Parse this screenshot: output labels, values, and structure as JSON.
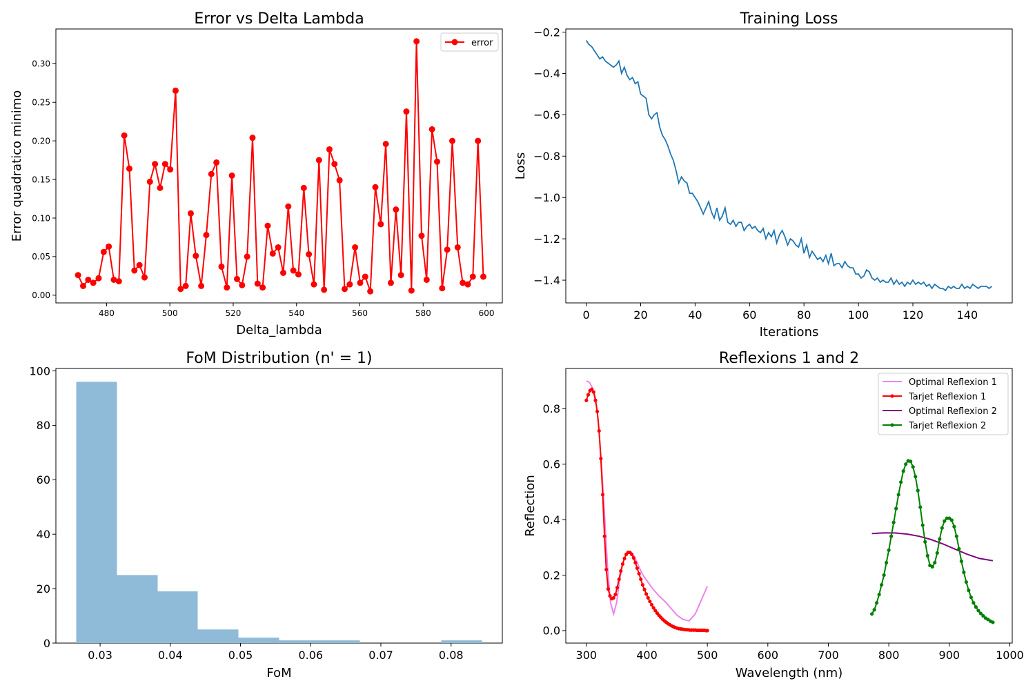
{
  "chart_data": [
    {
      "type": "line",
      "title": "Error vs Delta Lambda",
      "xlabel": "Delta_lambda",
      "ylabel": "Error quadratico minimo",
      "xlim": [
        464,
        605
      ],
      "ylim": [
        -0.01,
        0.345
      ],
      "xticks": [
        480,
        500,
        520,
        540,
        560,
        580,
        600
      ],
      "yticks": [
        0.0,
        0.05,
        0.1,
        0.15,
        0.2,
        0.25,
        0.3
      ],
      "ytick_labels": [
        "0.00",
        "0.05",
        "0.10",
        "0.15",
        "0.20",
        "0.25",
        "0.30"
      ],
      "legend": "upper right",
      "series": [
        {
          "name": "error",
          "color": "#ff0000",
          "marker": "circle",
          "x": [
            471,
            472.6,
            474.2,
            475.8,
            477.5,
            479.1,
            480.7,
            482.3,
            483.9,
            485.6,
            487.2,
            488.8,
            490.4,
            492,
            493.7,
            495.3,
            496.9,
            498.5,
            500.1,
            501.8,
            503.4,
            505,
            506.6,
            508.2,
            509.9,
            511.5,
            513.1,
            514.7,
            516.3,
            518,
            519.6,
            521.2,
            522.8,
            524.4,
            526.1,
            527.7,
            529.3,
            530.9,
            532.5,
            534.2,
            535.8,
            537.4,
            539,
            540.6,
            542.3,
            543.9,
            545.5,
            547.1,
            548.7,
            550.4,
            552,
            553.6,
            555.2,
            556.8,
            558.5,
            560.1,
            561.7,
            563.3,
            564.9,
            566.6,
            568.2,
            569.8,
            571.4,
            573,
            574.7,
            576.3,
            577.9,
            579.5,
            581.1,
            582.8,
            584.4,
            586,
            587.6,
            589.2,
            590.9,
            592.5,
            594.1,
            595.7,
            597.3,
            599
          ],
          "y": [
            0.026,
            0.012,
            0.02,
            0.016,
            0.022,
            0.056,
            0.063,
            0.02,
            0.018,
            0.207,
            0.164,
            0.032,
            0.039,
            0.023,
            0.147,
            0.17,
            0.139,
            0.17,
            0.163,
            0.265,
            0.008,
            0.012,
            0.106,
            0.051,
            0.012,
            0.078,
            0.157,
            0.172,
            0.037,
            0.01,
            0.155,
            0.021,
            0.013,
            0.05,
            0.204,
            0.015,
            0.01,
            0.09,
            0.054,
            0.062,
            0.029,
            0.115,
            0.032,
            0.027,
            0.139,
            0.053,
            0.014,
            0.175,
            0.007,
            0.189,
            0.17,
            0.149,
            0.008,
            0.014,
            0.062,
            0.016,
            0.024,
            0.005,
            0.14,
            0.092,
            0.196,
            0.016,
            0.111,
            0.026,
            0.238,
            0.006,
            0.329,
            0.077,
            0.02,
            0.215,
            0.173,
            0.009,
            0.059,
            0.2,
            0.062,
            0.016,
            0.014,
            0.024,
            0.2,
            0.024
          ]
        }
      ]
    },
    {
      "type": "line",
      "title": "Training Loss",
      "xlabel": "Iterations",
      "ylabel": "Loss",
      "xlim": [
        -7.5,
        156.5
      ],
      "ylim": [
        -1.51,
        -0.185
      ],
      "xticks": [
        0,
        20,
        40,
        60,
        80,
        100,
        120,
        140
      ],
      "yticks": [
        -1.4,
        -1.2,
        -1.0,
        -0.8,
        -0.6,
        -0.4,
        -0.2
      ],
      "ytick_labels": [
        "−1.4",
        "−1.2",
        "−1.0",
        "−0.8",
        "−0.6",
        "−0.4",
        "−0.2"
      ],
      "series": [
        {
          "name": "",
          "color": "#1f77b4",
          "x_start": 0,
          "x_step": 1,
          "y": [
            -0.24,
            -0.26,
            -0.27,
            -0.29,
            -0.31,
            -0.33,
            -0.32,
            -0.34,
            -0.35,
            -0.36,
            -0.37,
            -0.36,
            -0.34,
            -0.4,
            -0.37,
            -0.41,
            -0.43,
            -0.42,
            -0.45,
            -0.44,
            -0.5,
            -0.51,
            -0.52,
            -0.6,
            -0.62,
            -0.6,
            -0.59,
            -0.66,
            -0.7,
            -0.72,
            -0.75,
            -0.79,
            -0.82,
            -0.87,
            -0.93,
            -0.9,
            -0.92,
            -0.93,
            -0.98,
            -0.98,
            -1.0,
            -1.02,
            -1.05,
            -1.08,
            -1.05,
            -1.02,
            -1.07,
            -1.1,
            -1.05,
            -1.11,
            -1.09,
            -1.05,
            -1.12,
            -1.13,
            -1.11,
            -1.14,
            -1.12,
            -1.12,
            -1.16,
            -1.14,
            -1.13,
            -1.15,
            -1.14,
            -1.16,
            -1.17,
            -1.15,
            -1.2,
            -1.17,
            -1.19,
            -1.16,
            -1.22,
            -1.18,
            -1.16,
            -1.19,
            -1.23,
            -1.2,
            -1.21,
            -1.23,
            -1.24,
            -1.2,
            -1.27,
            -1.23,
            -1.29,
            -1.26,
            -1.28,
            -1.3,
            -1.29,
            -1.31,
            -1.28,
            -1.32,
            -1.27,
            -1.33,
            -1.32,
            -1.32,
            -1.34,
            -1.31,
            -1.33,
            -1.34,
            -1.34,
            -1.37,
            -1.37,
            -1.39,
            -1.38,
            -1.35,
            -1.36,
            -1.39,
            -1.4,
            -1.39,
            -1.41,
            -1.4,
            -1.41,
            -1.41,
            -1.39,
            -1.42,
            -1.4,
            -1.42,
            -1.41,
            -1.43,
            -1.41,
            -1.42,
            -1.4,
            -1.42,
            -1.41,
            -1.42,
            -1.41,
            -1.43,
            -1.42,
            -1.44,
            -1.42,
            -1.43,
            -1.44,
            -1.44,
            -1.45,
            -1.43,
            -1.44,
            -1.43,
            -1.44,
            -1.44,
            -1.42,
            -1.44,
            -1.43,
            -1.44,
            -1.42,
            -1.43,
            -1.44,
            -1.43,
            -1.43,
            -1.43,
            -1.44,
            -1.43
          ]
        }
      ]
    },
    {
      "type": "bar",
      "subtype": "histogram",
      "title": "FoM Distribution (n' = 1)",
      "xlabel": "FoM",
      "ylabel": "",
      "color": "#8fbad8",
      "xlim": [
        0.0237,
        0.0873
      ],
      "ylim": [
        0,
        100.9
      ],
      "xticks": [
        0.03,
        0.04,
        0.05,
        0.06,
        0.07,
        0.08
      ],
      "xtick_labels": [
        "0.03",
        "0.04",
        "0.05",
        "0.06",
        "0.07",
        "0.08"
      ],
      "yticks": [
        0,
        20,
        40,
        60,
        80,
        100
      ],
      "bin_edges": [
        0.0266,
        0.0324,
        0.0382,
        0.0439,
        0.0497,
        0.0555,
        0.0613,
        0.067,
        0.0728,
        0.0786,
        0.0844
      ],
      "counts": [
        96,
        25,
        19,
        5,
        2,
        1,
        1,
        0,
        0,
        1
      ]
    },
    {
      "type": "line",
      "title": "Reflexions 1 and 2",
      "xlabel": "Wavelength (nm)",
      "ylabel": "Reflection",
      "xlim": [
        266,
        1004
      ],
      "ylim": [
        -0.045,
        0.945
      ],
      "xticks": [
        300,
        400,
        500,
        600,
        700,
        800,
        900,
        1000
      ],
      "yticks": [
        0.0,
        0.2,
        0.4,
        0.6,
        0.8
      ],
      "ytick_labels": [
        "0.0",
        "0.2",
        "0.4",
        "0.6",
        "0.8"
      ],
      "legend": "upper right",
      "series": [
        {
          "name": "Optimal Reflexion 1",
          "color": "#ee82ee",
          "marker": "none",
          "x": [
            300,
            305,
            310,
            315,
            320,
            325,
            330,
            335,
            340,
            345,
            350,
            355,
            360,
            365,
            370,
            375,
            380,
            385,
            390,
            395,
            400,
            410,
            420,
            430,
            440,
            450,
            460,
            470,
            480,
            490,
            500
          ],
          "y": [
            0.9,
            0.895,
            0.875,
            0.84,
            0.75,
            0.6,
            0.42,
            0.23,
            0.1,
            0.06,
            0.1,
            0.18,
            0.24,
            0.275,
            0.285,
            0.28,
            0.265,
            0.24,
            0.215,
            0.195,
            0.18,
            0.15,
            0.125,
            0.105,
            0.08,
            0.055,
            0.04,
            0.035,
            0.06,
            0.11,
            0.16
          ]
        },
        {
          "name": "Tarjet Reflexion 1",
          "color": "#ff0000",
          "marker": "dot",
          "x": [
            300,
            303,
            306,
            309,
            312,
            315,
            318,
            321,
            324,
            327,
            330,
            333,
            336,
            339,
            342,
            345,
            348,
            351,
            354,
            357,
            360,
            363,
            366,
            369,
            372,
            375,
            378,
            381,
            384,
            387,
            390,
            393,
            396,
            399,
            402,
            405,
            408,
            411,
            414,
            417,
            420,
            423,
            426,
            429,
            432,
            435,
            438,
            441,
            444,
            447,
            450,
            453,
            456,
            459,
            462,
            465,
            468,
            471,
            474,
            477,
            480,
            483,
            486,
            489,
            492,
            495,
            498,
            500
          ],
          "y": [
            0.83,
            0.85,
            0.865,
            0.87,
            0.86,
            0.83,
            0.79,
            0.72,
            0.62,
            0.49,
            0.34,
            0.22,
            0.15,
            0.125,
            0.115,
            0.118,
            0.13,
            0.155,
            0.185,
            0.215,
            0.24,
            0.26,
            0.275,
            0.282,
            0.282,
            0.275,
            0.262,
            0.245,
            0.225,
            0.205,
            0.185,
            0.165,
            0.148,
            0.132,
            0.118,
            0.105,
            0.093,
            0.082,
            0.072,
            0.063,
            0.055,
            0.048,
            0.041,
            0.035,
            0.03,
            0.025,
            0.021,
            0.017,
            0.014,
            0.011,
            0.009,
            0.007,
            0.006,
            0.005,
            0.004,
            0.003,
            0.003,
            0.002,
            0.002,
            0.002,
            0.002,
            0.001,
            0.001,
            0.001,
            0.001,
            0.001,
            0.0,
            0.0
          ]
        },
        {
          "name": "Optimal Reflexion 2",
          "color": "#800080",
          "marker": "none",
          "x": [
            772,
            790,
            810,
            830,
            850,
            870,
            890,
            910,
            930,
            950,
            972
          ],
          "y": [
            0.35,
            0.352,
            0.352,
            0.348,
            0.34,
            0.328,
            0.312,
            0.293,
            0.275,
            0.26,
            0.252
          ]
        },
        {
          "name": "Tarjet Reflexion 2",
          "color": "#008000",
          "marker": "dot",
          "x": [
            772,
            776,
            780,
            784,
            788,
            792,
            796,
            800,
            804,
            808,
            812,
            816,
            820,
            824,
            828,
            832,
            836,
            840,
            844,
            848,
            852,
            856,
            860,
            864,
            868,
            872,
            876,
            880,
            884,
            888,
            892,
            896,
            900,
            904,
            908,
            912,
            916,
            920,
            924,
            928,
            932,
            936,
            940,
            944,
            948,
            952,
            956,
            960,
            964,
            968,
            972
          ],
          "y": [
            0.06,
            0.075,
            0.1,
            0.13,
            0.165,
            0.2,
            0.245,
            0.29,
            0.34,
            0.39,
            0.44,
            0.49,
            0.535,
            0.575,
            0.6,
            0.612,
            0.61,
            0.59,
            0.555,
            0.505,
            0.445,
            0.38,
            0.32,
            0.27,
            0.235,
            0.23,
            0.245,
            0.28,
            0.33,
            0.37,
            0.395,
            0.405,
            0.405,
            0.398,
            0.375,
            0.34,
            0.295,
            0.25,
            0.21,
            0.175,
            0.145,
            0.12,
            0.1,
            0.085,
            0.072,
            0.062,
            0.053,
            0.045,
            0.04,
            0.034,
            0.03
          ]
        }
      ]
    }
  ]
}
